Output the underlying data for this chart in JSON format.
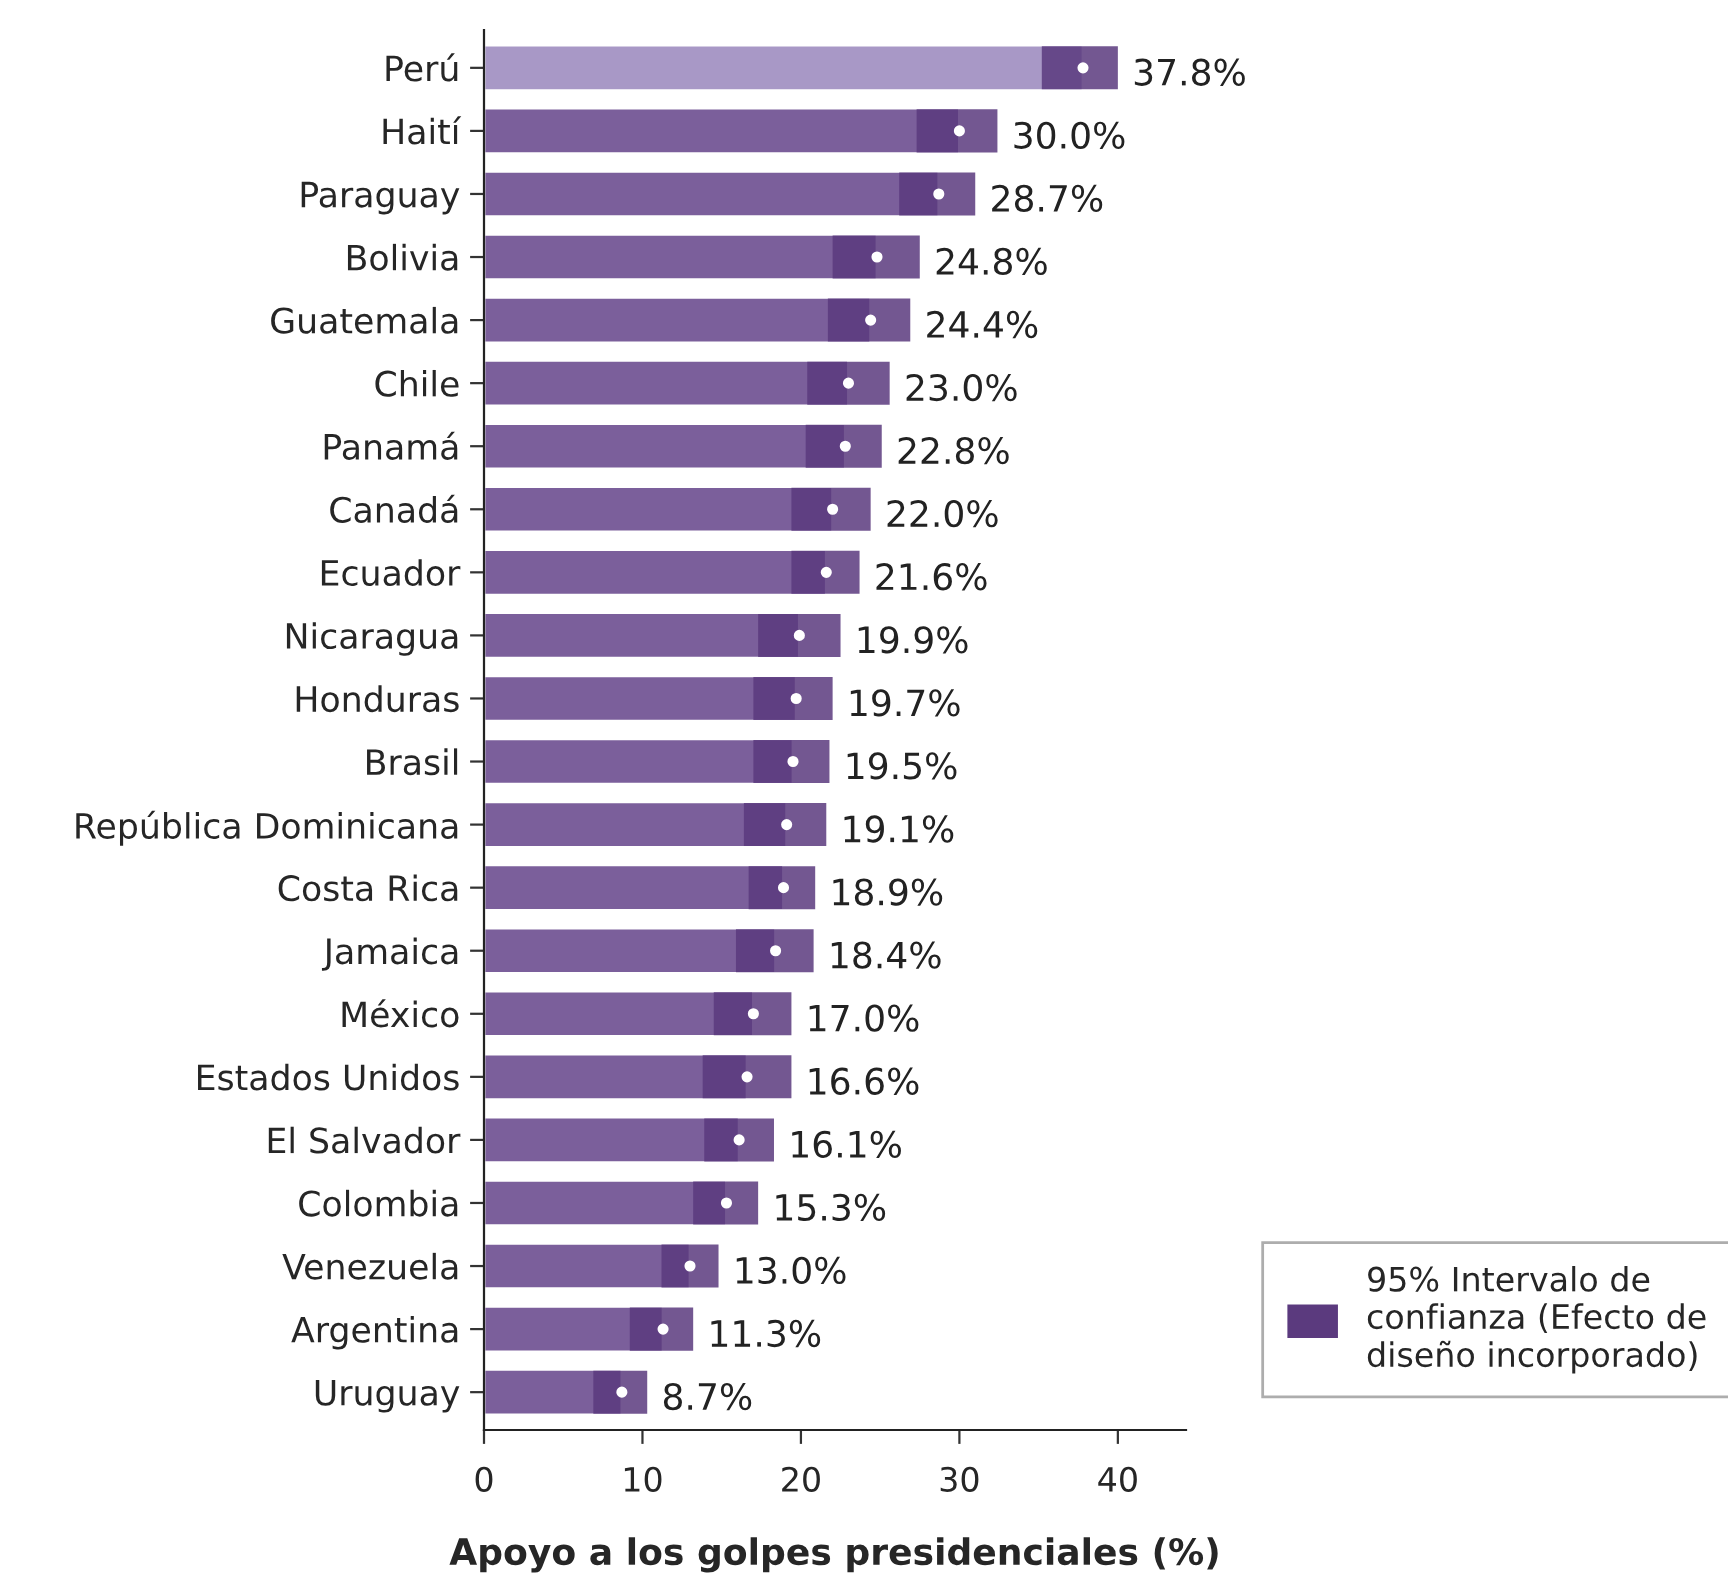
{
  "chart_data": {
    "type": "bar",
    "orientation": "horizontal",
    "xlabel": "Apoyo a los golpes presidenciales (%)",
    "categories": [
      "Perú",
      "Haití",
      "Paraguay",
      "Bolivia",
      "Guatemala",
      "Chile",
      "Panamá",
      "Canadá",
      "Ecuador",
      "Nicaragua",
      "Honduras",
      "Brasil",
      "República Dominicana",
      "Costa Rica",
      "Jamaica",
      "México",
      "Estados Unidos",
      "El Salvador",
      "Colombia",
      "Venezuela",
      "Argentina",
      "Uruguay"
    ],
    "series": [
      {
        "name": "95% Intervalo de\nconfianza (Efecto de\ndiseño incorporado)",
        "color": "#5b3a7e",
        "colors": [
          "#a898c6",
          "#7b5f9b",
          "#7b5f9b",
          "#7b5f9b",
          "#7b5f9b",
          "#7b5f9b",
          "#7b5f9b",
          "#7b5f9b",
          "#7b5f9b",
          "#7b5f9b",
          "#7b5f9b",
          "#7b5f9b",
          "#7b5f9b",
          "#7b5f9b",
          "#7b5f9b",
          "#7b5f9b",
          "#7b5f9b",
          "#7b5f9b",
          "#7b5f9b",
          "#7b5f9b",
          "#7b5f9b",
          "#7b5f9b"
        ],
        "values": [
          37.8,
          30.0,
          28.7,
          24.8,
          24.4,
          23.0,
          22.8,
          22.0,
          21.6,
          19.9,
          19.7,
          19.5,
          19.1,
          18.9,
          18.4,
          17.0,
          16.6,
          16.1,
          15.3,
          13.0,
          11.3,
          8.7
        ],
        "errors": [
          [
            35.2,
            40.0
          ],
          [
            27.3,
            32.4
          ],
          [
            26.2,
            31.0
          ],
          [
            22.0,
            27.5
          ],
          [
            21.7,
            26.9
          ],
          [
            20.4,
            25.6
          ],
          [
            20.3,
            25.1
          ],
          [
            19.4,
            24.4
          ],
          [
            19.4,
            23.7
          ],
          [
            17.3,
            22.5
          ],
          [
            17.0,
            22.0
          ],
          [
            17.0,
            21.8
          ],
          [
            16.4,
            21.6
          ],
          [
            16.7,
            20.9
          ],
          [
            15.9,
            20.8
          ],
          [
            14.5,
            19.4
          ],
          [
            13.8,
            19.4
          ],
          [
            13.9,
            18.3
          ],
          [
            13.2,
            17.3
          ],
          [
            11.2,
            14.8
          ],
          [
            9.2,
            13.2
          ],
          [
            6.9,
            10.3
          ]
        ],
        "value_labels": [
          "37.8%",
          "30.0%",
          "28.7%",
          "24.8%",
          "24.4%",
          "23.0%",
          "22.8%",
          "22.0%",
          "21.6%",
          "19.9%",
          "19.7%",
          "19.5%",
          "19.1%",
          "18.9%",
          "18.4%",
          "17.0%",
          "16.6%",
          "16.1%",
          "15.3%",
          "13.0%",
          "11.3%",
          "8.7%"
        ]
      }
    ],
    "xlim": [
      0,
      44.3
    ],
    "xticks": [
      0,
      10,
      20,
      30,
      40
    ],
    "grid": false,
    "legend": "bottom right"
  }
}
